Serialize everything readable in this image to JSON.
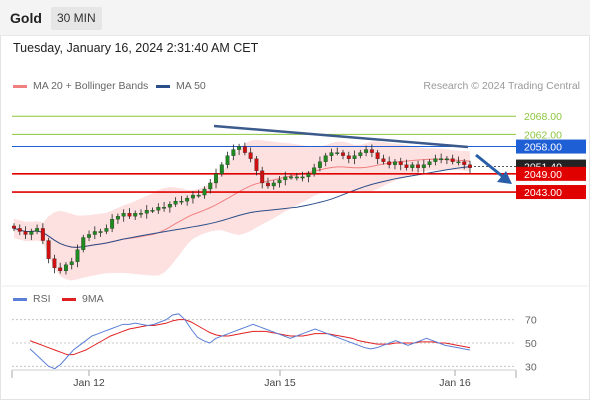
{
  "header": {
    "symbol": "Gold",
    "timeframe": "30 MIN",
    "datetime": "Tuesday, January 16, 2024 2:31:40 AM CET",
    "credit": "Research © 2024 Trading Central"
  },
  "legend_main": [
    {
      "label": "MA 20 + Bollinger Bands",
      "color": "#f08080"
    },
    {
      "label": "MA 50",
      "color": "#2b4f8a"
    }
  ],
  "legend_rsi": [
    {
      "label": "RSI",
      "color": "#5b7fd6"
    },
    {
      "label": "9MA",
      "color": "#e02020"
    }
  ],
  "colors": {
    "up": "#1f8a1f",
    "down": "#d01010",
    "resistance_green": "#8cc63f",
    "pivot_blue": "#1f5fd6",
    "support_red": "#e00000",
    "trendline": "#3c5a8c",
    "band_fill": "#fde0e0",
    "ma20": "#f08080",
    "ma50": "#2b4f8a"
  },
  "chart_data": {
    "type": "line",
    "title": "",
    "price_axis": {
      "min": 2013,
      "max": 2075
    },
    "levels": [
      {
        "value": 2068.0,
        "label": "2068.00",
        "kind": "resistance"
      },
      {
        "value": 2062.0,
        "label": "2062.00",
        "kind": "resistance"
      },
      {
        "value": 2058.0,
        "label": "2058.00",
        "kind": "pivot"
      },
      {
        "value": 2051.4,
        "label": "2051.40",
        "kind": "last"
      },
      {
        "value": 2049.0,
        "label": "2049.00",
        "kind": "support"
      },
      {
        "value": 2043.0,
        "label": "2043.00",
        "kind": "support"
      }
    ],
    "x_labels": [
      "Jan 12",
      "Jan 15",
      "Jan 16"
    ],
    "price_series": [
      2031,
      2030,
      2029,
      2030,
      2031,
      2027,
      2021,
      2018,
      2017,
      2019,
      2020,
      2024,
      2028,
      2029,
      2030,
      2030,
      2031,
      2034,
      2035,
      2036,
      2035,
      2036,
      2036,
      2037,
      2037,
      2038,
      2038,
      2039,
      2040,
      2040,
      2041,
      2042,
      2042,
      2044,
      2046,
      2049,
      2052,
      2055,
      2057,
      2058,
      2056,
      2054,
      2050,
      2046,
      2045,
      2046,
      2047,
      2048,
      2048,
      2048,
      2048,
      2049,
      2051,
      2053,
      2055,
      2056,
      2056,
      2055,
      2054,
      2055,
      2056,
      2057,
      2056,
      2054,
      2053,
      2052,
      2053,
      2052,
      2051,
      2052,
      2051,
      2052,
      2053,
      2054,
      2054,
      2054,
      2053,
      2053,
      2052,
      2051
    ],
    "rsi": {
      "levels": [
        70,
        50,
        30
      ],
      "rsi_values": [
        45,
        40,
        35,
        30,
        28,
        32,
        38,
        44,
        48,
        52,
        56,
        58,
        60,
        62,
        64,
        66,
        66,
        67,
        66,
        65,
        66,
        68,
        70,
        74,
        75,
        70,
        62,
        55,
        52,
        50,
        54,
        56,
        58,
        60,
        62,
        64,
        66,
        64,
        62,
        60,
        58,
        56,
        54,
        56,
        58,
        60,
        62,
        60,
        58,
        56,
        54,
        52,
        50,
        48,
        46,
        45,
        46,
        48,
        50,
        52,
        50,
        48,
        50,
        52,
        54,
        52,
        50,
        48,
        47,
        46,
        45,
        44
      ],
      "ma_values": [
        52,
        50,
        48,
        46,
        44,
        42,
        40,
        40,
        42,
        44,
        47,
        50,
        53,
        56,
        58,
        60,
        62,
        63,
        64,
        65,
        65,
        66,
        67,
        69,
        70,
        70,
        68,
        65,
        62,
        59,
        57,
        56,
        56,
        57,
        58,
        59,
        60,
        60,
        60,
        59,
        58,
        57,
        56,
        56,
        56,
        57,
        58,
        58,
        58,
        57,
        56,
        55,
        54,
        52,
        51,
        50,
        49,
        49,
        49,
        50,
        50,
        50,
        50,
        51,
        51,
        51,
        50,
        50,
        49,
        48,
        47,
        46
      ]
    }
  }
}
